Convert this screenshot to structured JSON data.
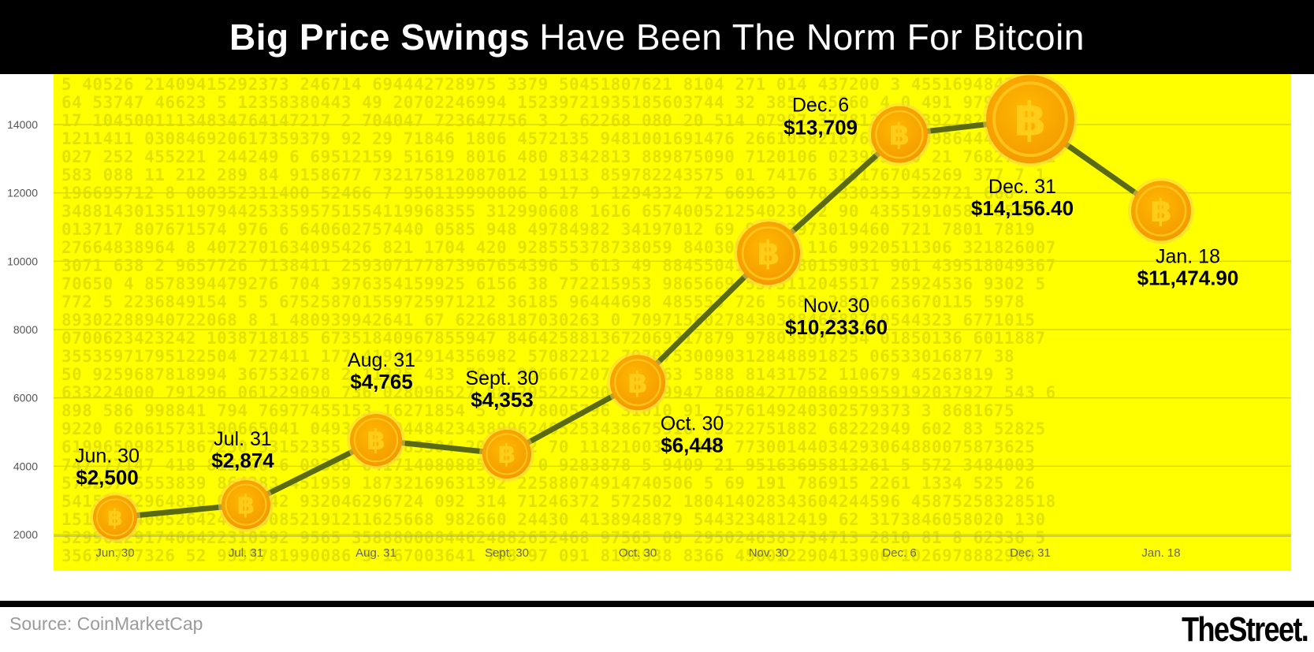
{
  "title": {
    "bold": "Big Price Swings",
    "rest": "Have Been The Norm For Bitcoin"
  },
  "source": "Source: CoinMarketCap",
  "brand": "TheStreet.",
  "colors": {
    "background": "#ffff00",
    "line": "#5a6a14",
    "coin_outer": "#f5b400",
    "coin_inner": "#f7a600",
    "coin_symbol": "#ffcc1a",
    "header": "#000000"
  },
  "chart_data": {
    "type": "line",
    "title": "Big Price Swings Have Been The Norm For Bitcoin",
    "xlabel": "",
    "ylabel": "",
    "categories": [
      "Jun. 30",
      "Jul. 31",
      "Aug. 31",
      "Sept. 30",
      "Oct. 30",
      "Nov. 30",
      "Dec. 6",
      "Dec. 31",
      "Jan. 18"
    ],
    "values": [
      2500,
      2874,
      4765,
      4353,
      6448,
      10233.6,
      13709,
      14156.4,
      11474.9
    ],
    "ylim": [
      2000,
      15000
    ],
    "yticks": [
      2000,
      4000,
      6000,
      8000,
      10000,
      12000,
      14000
    ],
    "grid": true,
    "annotations": [
      {
        "date": "Jun. 30",
        "price": "$2,500",
        "position": "above"
      },
      {
        "date": "Jul. 31",
        "price": "$2,874",
        "position": "above"
      },
      {
        "date": "Aug. 31",
        "price": "$4,765",
        "position": "above"
      },
      {
        "date": "Sept. 30",
        "price": "$4,353",
        "position": "above"
      },
      {
        "date": "Oct. 30",
        "price": "$6,448",
        "position": "below-right"
      },
      {
        "date": "Nov. 30",
        "price": "$10,233.60",
        "position": "below-right"
      },
      {
        "date": "Dec. 6",
        "price": "$13,709",
        "position": "left"
      },
      {
        "date": "Dec. 31",
        "price": "$14,156.40",
        "position": "below"
      },
      {
        "date": "Jan. 18",
        "price": "$11,474.90",
        "position": "below"
      }
    ]
  }
}
